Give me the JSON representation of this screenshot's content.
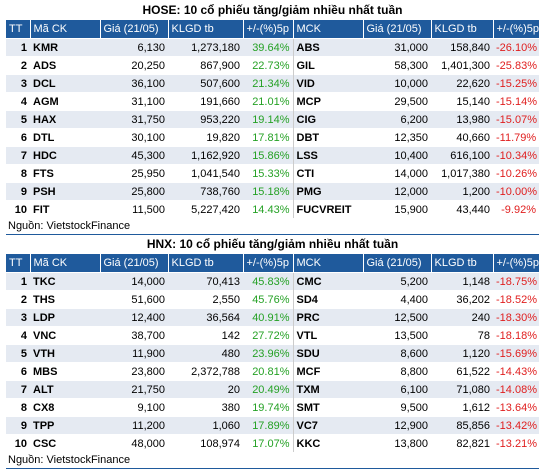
{
  "hose": {
    "title": "HOSE: 10 cổ phiếu tăng/giảm nhiều nhất tuần",
    "headers": [
      "TT",
      "Mã CK",
      "Giá (21/05)",
      "KLGD tb",
      "+/-(%)5p",
      "MCK",
      "Giá (21/05)",
      "KLGD tb",
      "+/-(%)5p"
    ],
    "rows": [
      {
        "tt": "1",
        "gain_code": "KMR",
        "gain_price": "6,130",
        "gain_vol": "1,273,180",
        "gain_pct": "39.64%",
        "loss_code": "ABS",
        "loss_price": "31,000",
        "loss_vol": "158,840",
        "loss_pct": "-26.10%"
      },
      {
        "tt": "2",
        "gain_code": "ADS",
        "gain_price": "20,250",
        "gain_vol": "867,900",
        "gain_pct": "22.73%",
        "loss_code": "GIL",
        "loss_price": "58,300",
        "loss_vol": "1,401,300",
        "loss_pct": "-25.83%"
      },
      {
        "tt": "3",
        "gain_code": "DCL",
        "gain_price": "36,100",
        "gain_vol": "507,600",
        "gain_pct": "21.34%",
        "loss_code": "VID",
        "loss_price": "10,000",
        "loss_vol": "22,620",
        "loss_pct": "-15.25%"
      },
      {
        "tt": "4",
        "gain_code": "AGM",
        "gain_price": "31,100",
        "gain_vol": "191,660",
        "gain_pct": "21.01%",
        "loss_code": "MCP",
        "loss_price": "29,500",
        "loss_vol": "15,140",
        "loss_pct": "-15.14%"
      },
      {
        "tt": "5",
        "gain_code": "HAX",
        "gain_price": "31,750",
        "gain_vol": "953,220",
        "gain_pct": "19.14%",
        "loss_code": "CIG",
        "loss_price": "6,200",
        "loss_vol": "13,980",
        "loss_pct": "-15.07%"
      },
      {
        "tt": "6",
        "gain_code": "DTL",
        "gain_price": "30,100",
        "gain_vol": "19,820",
        "gain_pct": "17.81%",
        "loss_code": "DBT",
        "loss_price": "12,350",
        "loss_vol": "40,660",
        "loss_pct": "-11.79%"
      },
      {
        "tt": "7",
        "gain_code": "HDC",
        "gain_price": "45,300",
        "gain_vol": "1,162,920",
        "gain_pct": "15.86%",
        "loss_code": "LSS",
        "loss_price": "10,400",
        "loss_vol": "616,100",
        "loss_pct": "-10.34%"
      },
      {
        "tt": "8",
        "gain_code": "FTS",
        "gain_price": "25,950",
        "gain_vol": "1,041,540",
        "gain_pct": "15.33%",
        "loss_code": "CTI",
        "loss_price": "14,000",
        "loss_vol": "1,017,380",
        "loss_pct": "-10.26%"
      },
      {
        "tt": "9",
        "gain_code": "PSH",
        "gain_price": "25,800",
        "gain_vol": "738,760",
        "gain_pct": "15.18%",
        "loss_code": "PMG",
        "loss_price": "12,000",
        "loss_vol": "1,200",
        "loss_pct": "-10.00%"
      },
      {
        "tt": "10",
        "gain_code": "FIT",
        "gain_price": "11,500",
        "gain_vol": "5,227,420",
        "gain_pct": "14.43%",
        "loss_code": "FUCVREIT",
        "loss_price": "15,900",
        "loss_vol": "43,440",
        "loss_pct": "-9.92%"
      }
    ],
    "source": "Nguồn: VietstockFinance"
  },
  "hnx": {
    "title": "HNX: 10 cổ phiếu tăng/giảm nhiều nhất tuần",
    "headers": [
      "TT",
      "Mã CK",
      "Giá (21/05)",
      "KLGD tb",
      "+/-(%)5p",
      "MCK",
      "Giá (21/05)",
      "KLGD tb",
      "+/-(%)5p"
    ],
    "rows": [
      {
        "tt": "1",
        "gain_code": "TKC",
        "gain_price": "14,000",
        "gain_vol": "70,413",
        "gain_pct": "45.83%",
        "loss_code": "CMC",
        "loss_price": "5,200",
        "loss_vol": "1,148",
        "loss_pct": "-18.75%"
      },
      {
        "tt": "2",
        "gain_code": "THS",
        "gain_price": "51,600",
        "gain_vol": "2,550",
        "gain_pct": "45.76%",
        "loss_code": "SD4",
        "loss_price": "4,400",
        "loss_vol": "36,202",
        "loss_pct": "-18.52%"
      },
      {
        "tt": "3",
        "gain_code": "LDP",
        "gain_price": "12,400",
        "gain_vol": "36,564",
        "gain_pct": "40.91%",
        "loss_code": "PRC",
        "loss_price": "12,500",
        "loss_vol": "240",
        "loss_pct": "-18.30%"
      },
      {
        "tt": "4",
        "gain_code": "VNC",
        "gain_price": "38,700",
        "gain_vol": "142",
        "gain_pct": "27.72%",
        "loss_code": "VTL",
        "loss_price": "13,500",
        "loss_vol": "78",
        "loss_pct": "-18.18%"
      },
      {
        "tt": "5",
        "gain_code": "VTH",
        "gain_price": "11,900",
        "gain_vol": "480",
        "gain_pct": "23.96%",
        "loss_code": "SDU",
        "loss_price": "8,600",
        "loss_vol": "1,120",
        "loss_pct": "-15.69%"
      },
      {
        "tt": "6",
        "gain_code": "MBS",
        "gain_price": "23,800",
        "gain_vol": "2,372,788",
        "gain_pct": "20.81%",
        "loss_code": "MCF",
        "loss_price": "8,800",
        "loss_vol": "61,522",
        "loss_pct": "-14.43%"
      },
      {
        "tt": "7",
        "gain_code": "ALT",
        "gain_price": "21,750",
        "gain_vol": "20",
        "gain_pct": "20.49%",
        "loss_code": "TXM",
        "loss_price": "6,100",
        "loss_vol": "71,080",
        "loss_pct": "-14.08%"
      },
      {
        "tt": "8",
        "gain_code": "CX8",
        "gain_price": "9,100",
        "gain_vol": "380",
        "gain_pct": "19.74%",
        "loss_code": "SMT",
        "loss_price": "9,500",
        "loss_vol": "1,612",
        "loss_pct": "-13.64%"
      },
      {
        "tt": "9",
        "gain_code": "TPP",
        "gain_price": "11,200",
        "gain_vol": "1,060",
        "gain_pct": "17.89%",
        "loss_code": "VC7",
        "loss_price": "12,900",
        "loss_vol": "85,856",
        "loss_pct": "-13.42%"
      },
      {
        "tt": "10",
        "gain_code": "CSC",
        "gain_price": "48,000",
        "gain_vol": "108,974",
        "gain_pct": "17.07%",
        "loss_code": "KKC",
        "loss_price": "13,800",
        "loss_vol": "82,821",
        "loss_pct": "-13.21%"
      }
    ],
    "source": "Nguồn: VietstockFinance"
  },
  "colors": {
    "header_bg": "#1f5a9c",
    "row_alt_bg": "#e5eaf2",
    "gain_text": "#25a125",
    "loss_text": "#e01e1e"
  }
}
